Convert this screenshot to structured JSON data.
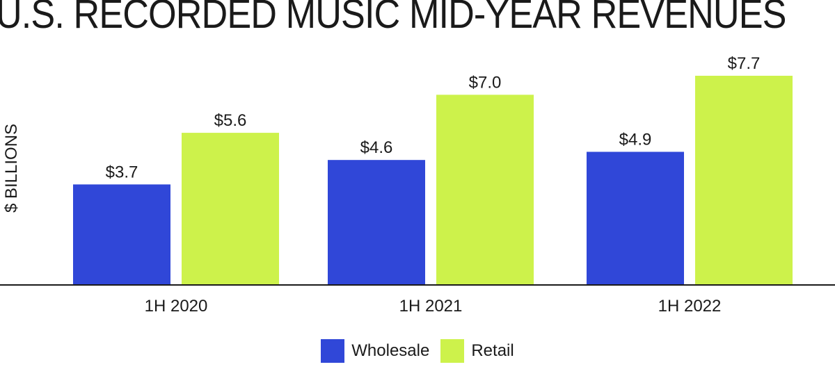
{
  "chart_data": {
    "type": "bar",
    "title": "U.S. RECORDED MUSIC MID-YEAR REVENUES",
    "xlabel": "",
    "ylabel": "$ BILLIONS",
    "ylim": [
      0,
      7.7
    ],
    "categories": [
      "1H 2020",
      "1H 2021",
      "1H 2022"
    ],
    "series": [
      {
        "name": "Wholesale",
        "color": "#3047d8",
        "values": [
          3.7,
          4.6,
          4.9
        ],
        "labels": [
          "$3.7",
          "$4.6",
          "$4.9"
        ]
      },
      {
        "name": "Retail",
        "color": "#cdf24b",
        "values": [
          5.6,
          7.0,
          7.7
        ],
        "labels": [
          "$5.6",
          "$7.0",
          "$7.7"
        ]
      }
    ],
    "grid": false,
    "legend_position": "bottom-center"
  }
}
